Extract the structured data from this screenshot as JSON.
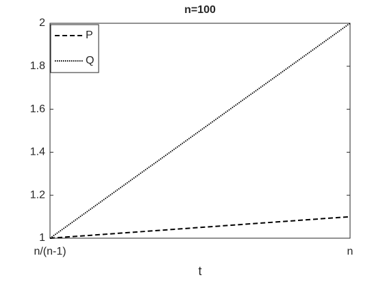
{
  "chart_data": {
    "type": "line",
    "title": "n=100",
    "x_label": "t",
    "categories": [
      "n/(n-1)",
      "n"
    ],
    "series": [
      {
        "name": "P",
        "color": "#000000",
        "line_style": "dashed",
        "values": [
          1,
          1.1
        ]
      },
      {
        "name": "Q",
        "color": "#000000",
        "line_style": "dotted",
        "values": [
          1,
          2
        ]
      }
    ],
    "ylim": [
      1,
      2
    ],
    "yticks": [
      1,
      1.2,
      1.4,
      1.6,
      1.8,
      2
    ],
    "legend": "upper left",
    "grid": false
  }
}
